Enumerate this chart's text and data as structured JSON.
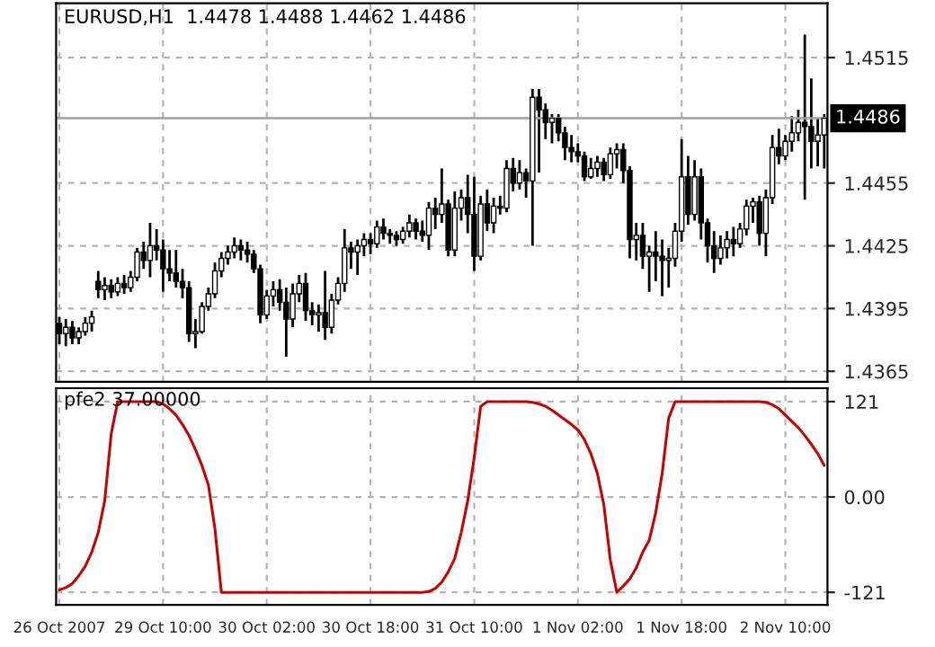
{
  "chart_data": [
    {
      "type": "candlestick",
      "title": "EURUSD,H1  1.4478 1.4488 1.4462 1.4486",
      "color": "#000000",
      "grid": true,
      "tick_labels": "y",
      "ohlc": [
        [
          1.4388,
          1.4391,
          1.4378,
          1.4383
        ],
        [
          1.4383,
          1.439,
          1.4377,
          1.4386
        ],
        [
          1.4386,
          1.4389,
          1.4378,
          1.4381
        ],
        [
          1.4381,
          1.4386,
          1.4378,
          1.4384
        ],
        [
          1.4384,
          1.4391,
          1.4382,
          1.4388
        ],
        [
          1.4388,
          1.4394,
          1.4384,
          1.4391
        ],
        [
          1.4408,
          1.4413,
          1.44,
          1.4404
        ],
        [
          1.4404,
          1.441,
          1.4399,
          1.4406
        ],
        [
          1.4406,
          1.4409,
          1.44,
          1.4403
        ],
        [
          1.4403,
          1.441,
          1.4401,
          1.4407
        ],
        [
          1.4407,
          1.4411,
          1.4402,
          1.4405
        ],
        [
          1.4405,
          1.4413,
          1.4403,
          1.441
        ],
        [
          1.441,
          1.4424,
          1.4408,
          1.4422
        ],
        [
          1.4422,
          1.4427,
          1.4414,
          1.4418
        ],
        [
          1.4418,
          1.4436,
          1.441,
          1.4425
        ],
        [
          1.4425,
          1.4433,
          1.4418,
          1.4423
        ],
        [
          1.4423,
          1.4428,
          1.4403,
          1.4414
        ],
        [
          1.4414,
          1.4423,
          1.4408,
          1.4412
        ],
        [
          1.4412,
          1.4423,
          1.4405,
          1.4408
        ],
        [
          1.4408,
          1.4414,
          1.44,
          1.4405
        ],
        [
          1.4405,
          1.4408,
          1.4379,
          1.4383
        ],
        [
          1.4383,
          1.439,
          1.4376,
          1.4384
        ],
        [
          1.4384,
          1.4398,
          1.4383,
          1.4396
        ],
        [
          1.4396,
          1.4405,
          1.4394,
          1.4402
        ],
        [
          1.4402,
          1.4417,
          1.44,
          1.4413
        ],
        [
          1.4413,
          1.4422,
          1.441,
          1.4419
        ],
        [
          1.4419,
          1.4425,
          1.4416,
          1.4422
        ],
        [
          1.4422,
          1.4429,
          1.4419,
          1.4425
        ],
        [
          1.4425,
          1.4428,
          1.4418,
          1.4423
        ],
        [
          1.4423,
          1.4427,
          1.4417,
          1.4421
        ],
        [
          1.4421,
          1.4423,
          1.4412,
          1.4414
        ],
        [
          1.4414,
          1.4416,
          1.4388,
          1.4392
        ],
        [
          1.4392,
          1.4404,
          1.439,
          1.4401
        ],
        [
          1.4401,
          1.4408,
          1.4396,
          1.4404
        ],
        [
          1.4404,
          1.4409,
          1.4394,
          1.4398
        ],
        [
          1.4398,
          1.4405,
          1.4372,
          1.439
        ],
        [
          1.439,
          1.4407,
          1.4386,
          1.4402
        ],
        [
          1.4402,
          1.4411,
          1.4398,
          1.4407
        ],
        [
          1.4407,
          1.4412,
          1.4389,
          1.4394
        ],
        [
          1.4394,
          1.4398,
          1.4387,
          1.4392
        ],
        [
          1.4392,
          1.4397,
          1.4384,
          1.4393
        ],
        [
          1.4393,
          1.4413,
          1.438,
          1.4386
        ],
        [
          1.4386,
          1.4402,
          1.4383,
          1.4399
        ],
        [
          1.4399,
          1.441,
          1.4397,
          1.4407
        ],
        [
          1.4407,
          1.4433,
          1.4403,
          1.4424
        ],
        [
          1.4424,
          1.4427,
          1.4414,
          1.4422
        ],
        [
          1.4422,
          1.4428,
          1.4411,
          1.4425
        ],
        [
          1.4425,
          1.4431,
          1.442,
          1.4428
        ],
        [
          1.4428,
          1.4431,
          1.4421,
          1.4426
        ],
        [
          1.4426,
          1.4437,
          1.4424,
          1.4434
        ],
        [
          1.4434,
          1.4438,
          1.4428,
          1.4431
        ],
        [
          1.4431,
          1.4433,
          1.4426,
          1.443
        ],
        [
          1.443,
          1.4432,
          1.4425,
          1.4428
        ],
        [
          1.4428,
          1.4434,
          1.4426,
          1.4432
        ],
        [
          1.4432,
          1.444,
          1.4429,
          1.4436
        ],
        [
          1.4436,
          1.4438,
          1.4428,
          1.4432
        ],
        [
          1.4432,
          1.4437,
          1.4427,
          1.443
        ],
        [
          1.443,
          1.4446,
          1.4423,
          1.4443
        ],
        [
          1.4443,
          1.4448,
          1.4433,
          1.444
        ],
        [
          1.444,
          1.4462,
          1.4436,
          1.4445
        ],
        [
          1.4445,
          1.4447,
          1.442,
          1.4423
        ],
        [
          1.4423,
          1.4451,
          1.442,
          1.4443
        ],
        [
          1.4443,
          1.4452,
          1.4437,
          1.4448
        ],
        [
          1.4448,
          1.4459,
          1.4431,
          1.444
        ],
        [
          1.444,
          1.4458,
          1.4413,
          1.442
        ],
        [
          1.442,
          1.4449,
          1.4418,
          1.4445
        ],
        [
          1.4445,
          1.4452,
          1.4432,
          1.4436
        ],
        [
          1.4436,
          1.4448,
          1.4431,
          1.4444
        ],
        [
          1.4444,
          1.4449,
          1.444,
          1.4443
        ],
        [
          1.4443,
          1.4466,
          1.4441,
          1.4462
        ],
        [
          1.4462,
          1.4467,
          1.4451,
          1.4455
        ],
        [
          1.4455,
          1.4466,
          1.4452,
          1.446
        ],
        [
          1.446,
          1.4462,
          1.4448,
          1.4456
        ],
        [
          1.4456,
          1.45,
          1.4425,
          1.4496
        ],
        [
          1.4496,
          1.45,
          1.446,
          1.449
        ],
        [
          1.449,
          1.4493,
          1.4476,
          1.4484
        ],
        [
          1.4484,
          1.4488,
          1.4474,
          1.4486
        ],
        [
          1.4486,
          1.4488,
          1.4475,
          1.4479
        ],
        [
          1.4479,
          1.4482,
          1.4466,
          1.4472
        ],
        [
          1.4472,
          1.4478,
          1.4465,
          1.447
        ],
        [
          1.447,
          1.4474,
          1.4465,
          1.4468
        ],
        [
          1.4468,
          1.447,
          1.4456,
          1.4458
        ],
        [
          1.4458,
          1.4467,
          1.4457,
          1.4462
        ],
        [
          1.4462,
          1.4468,
          1.4458,
          1.4465
        ],
        [
          1.4465,
          1.4467,
          1.4456,
          1.4459
        ],
        [
          1.4459,
          1.4472,
          1.4457,
          1.4469
        ],
        [
          1.4469,
          1.4474,
          1.4462,
          1.4471
        ],
        [
          1.4471,
          1.4474,
          1.4455,
          1.4461
        ],
        [
          1.4461,
          1.4463,
          1.4419,
          1.4428
        ],
        [
          1.4428,
          1.4436,
          1.4418,
          1.443
        ],
        [
          1.443,
          1.4436,
          1.4414,
          1.442
        ],
        [
          1.442,
          1.4425,
          1.4403,
          1.4422
        ],
        [
          1.4422,
          1.4432,
          1.4408,
          1.442
        ],
        [
          1.442,
          1.4428,
          1.4401,
          1.4418
        ],
        [
          1.4418,
          1.4424,
          1.4405,
          1.4419
        ],
        [
          1.4419,
          1.4436,
          1.4415,
          1.4432
        ],
        [
          1.4432,
          1.4476,
          1.4427,
          1.4458
        ],
        [
          1.4458,
          1.4468,
          1.4435,
          1.444
        ],
        [
          1.444,
          1.4466,
          1.4437,
          1.4458
        ],
        [
          1.4458,
          1.4462,
          1.4428,
          1.4436
        ],
        [
          1.4436,
          1.4438,
          1.4417,
          1.4425
        ],
        [
          1.4425,
          1.4432,
          1.4412,
          1.4419
        ],
        [
          1.4419,
          1.443,
          1.4416,
          1.4424
        ],
        [
          1.4424,
          1.4432,
          1.4419,
          1.4428
        ],
        [
          1.4428,
          1.4434,
          1.442,
          1.4426
        ],
        [
          1.4426,
          1.4436,
          1.4424,
          1.4433
        ],
        [
          1.4433,
          1.4447,
          1.443,
          1.4444
        ],
        [
          1.4444,
          1.4448,
          1.4436,
          1.4446
        ],
        [
          1.4446,
          1.4449,
          1.4425,
          1.4431
        ],
        [
          1.4431,
          1.4452,
          1.442,
          1.4448
        ],
        [
          1.4448,
          1.4478,
          1.4445,
          1.4472
        ],
        [
          1.4472,
          1.4481,
          1.4464,
          1.4468
        ],
        [
          1.4468,
          1.4478,
          1.4466,
          1.4475
        ],
        [
          1.4475,
          1.4487,
          1.447,
          1.4479
        ],
        [
          1.4479,
          1.449,
          1.4475,
          1.4484
        ],
        [
          1.4484,
          1.4526,
          1.4447,
          1.4482
        ],
        [
          1.4482,
          1.4505,
          1.4462,
          1.4475
        ],
        [
          1.4475,
          1.4486,
          1.4463,
          1.4478
        ],
        [
          1.4478,
          1.4488,
          1.4462,
          1.4486
        ]
      ],
      "ylim": [
        1.436,
        1.4541
      ],
      "yticks": [
        1.4365,
        1.4395,
        1.4425,
        1.4455,
        1.4515
      ],
      "ref_lines": [
        {
          "axis": "y",
          "value": 1.4486,
          "label": "1.4486",
          "color": "#a0a0a0"
        }
      ]
    },
    {
      "type": "line",
      "title": "pfe2 37.00000",
      "grid": true,
      "categories": [
        "26 Oct 2007",
        null,
        null,
        null,
        null,
        null,
        null,
        null,
        null,
        null,
        null,
        null,
        null,
        null,
        null,
        null,
        "29 Oct 10:00",
        null,
        null,
        null,
        null,
        null,
        null,
        null,
        null,
        null,
        null,
        null,
        null,
        null,
        null,
        null,
        "30 Oct 02:00",
        null,
        null,
        null,
        null,
        null,
        null,
        null,
        null,
        null,
        null,
        null,
        null,
        null,
        null,
        null,
        "30 Oct 18:00",
        null,
        null,
        null,
        null,
        null,
        null,
        null,
        null,
        null,
        null,
        null,
        null,
        null,
        null,
        null,
        "31 Oct 10:00",
        null,
        null,
        null,
        null,
        null,
        null,
        null,
        null,
        null,
        null,
        null,
        null,
        null,
        null,
        null,
        "1 Nov 02:00",
        null,
        null,
        null,
        null,
        null,
        null,
        null,
        null,
        null,
        null,
        null,
        null,
        null,
        null,
        null,
        "1 Nov 18:00",
        null,
        null,
        null,
        null,
        null,
        null,
        null,
        null,
        null,
        null,
        null,
        null,
        null,
        null,
        null,
        "2 Nov 10:00",
        null,
        null,
        null,
        null,
        null,
        null
      ],
      "series": [
        {
          "color": "#cc0000",
          "values": [
            -118,
            -115,
            -110,
            -100,
            -88,
            -70,
            -45,
            -5,
            80,
            121,
            121,
            121,
            121,
            121,
            121,
            121,
            118,
            112,
            104,
            92,
            78,
            60,
            40,
            15,
            -40,
            -121,
            -121,
            -121,
            -121,
            -121,
            -121,
            -121,
            -121,
            -121,
            -121,
            -121,
            -121,
            -121,
            -121,
            -121,
            -121,
            -121,
            -121,
            -121,
            -121,
            -121,
            -121,
            -121,
            -121,
            -121,
            -121,
            -121,
            -121,
            -121,
            -121,
            -121,
            -121,
            -120,
            -116,
            -108,
            -95,
            -78,
            -45,
            -5,
            50,
            115,
            121,
            121,
            121,
            121,
            121,
            121,
            121,
            120,
            118,
            115,
            110,
            104,
            98,
            92,
            85,
            73,
            55,
            30,
            -10,
            -80,
            -121,
            -113,
            -104,
            -90,
            -70,
            -55,
            -20,
            30,
            100,
            121,
            121,
            121,
            121,
            121,
            121,
            121,
            121,
            121,
            121,
            121,
            121,
            121,
            121,
            120,
            117,
            112,
            104,
            96,
            88,
            78,
            67,
            55,
            40
          ]
        }
      ],
      "ylim": [
        -137,
        138
      ],
      "yticks": [
        {
          "value": 121,
          "label": "121"
        },
        {
          "value": 0,
          "label": "0.00"
        },
        {
          "value": -121,
          "label": "-121"
        }
      ]
    }
  ]
}
